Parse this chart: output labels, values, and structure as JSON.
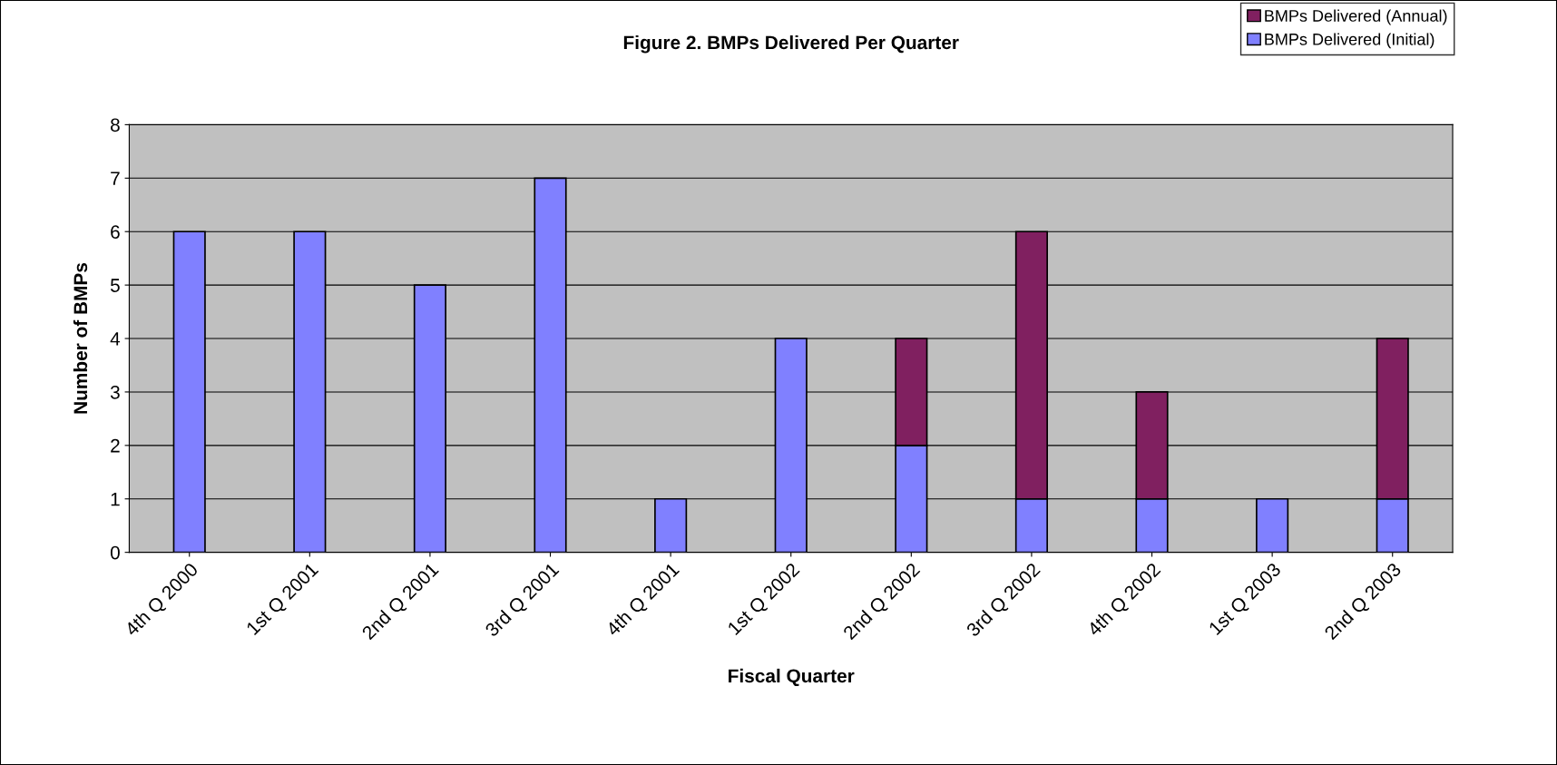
{
  "chart_data": {
    "type": "bar",
    "title": "Figure 2. BMPs Delivered Per Quarter",
    "xlabel": "Fiscal Quarter",
    "ylabel": "Number of BMPs",
    "categories": [
      "4th Q 2000",
      "1st Q 2001",
      "2nd Q 2001",
      "3rd Q 2001",
      "4th Q 2001",
      "1st Q 2002",
      "2nd Q 2002",
      "3rd Q 2002",
      "4th Q 2002",
      "1st Q 2003",
      "2nd Q 2003"
    ],
    "stacked": true,
    "series": [
      {
        "name": "BMPs Delivered (Initial)",
        "color": "#8080ff",
        "values": [
          6,
          6,
          5,
          7,
          1,
          4,
          2,
          1,
          1,
          1,
          1
        ]
      },
      {
        "name": "BMPs Delivered (Annual)",
        "color": "#802060",
        "values": [
          null,
          null,
          null,
          null,
          null,
          null,
          2,
          5,
          2,
          null,
          3
        ]
      }
    ],
    "ylim": [
      0,
      8
    ],
    "yticks": [
      0,
      1,
      2,
      3,
      4,
      5,
      6,
      7,
      8
    ],
    "grid": "y",
    "legend": "top right"
  }
}
